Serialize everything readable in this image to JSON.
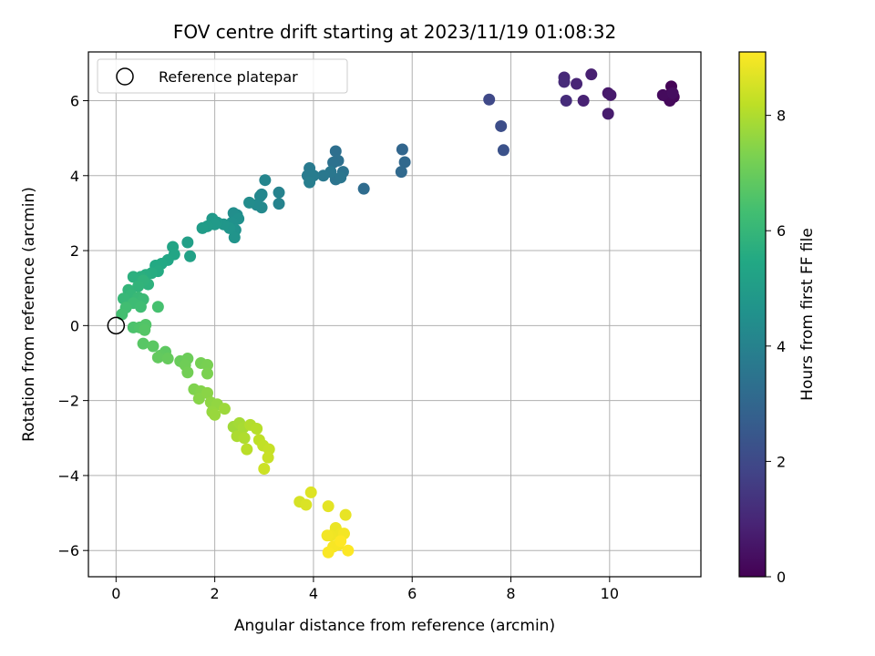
{
  "chart_data": {
    "type": "scatter",
    "title": "FOV centre drift starting at 2023/11/19 01:08:32",
    "xlabel": "Angular distance from reference (arcmin)",
    "ylabel": "Rotation from reference (arcmin)",
    "xlim": [
      -0.56,
      11.85
    ],
    "ylim": [
      -6.7,
      7.3
    ],
    "xticks": [
      0,
      2,
      4,
      6,
      8,
      10
    ],
    "yticks": [
      -6,
      -4,
      -2,
      0,
      2,
      4,
      6
    ],
    "grid": true,
    "legend": {
      "placement": "top-left",
      "entries": [
        "Reference platepar"
      ]
    },
    "reference_point": {
      "x": 0,
      "y": 0
    },
    "colorbar": {
      "label": "Hours from first FF file",
      "colormap": "viridis",
      "range": [
        0,
        9.1
      ],
      "ticks": [
        0,
        2,
        4,
        6,
        8
      ]
    },
    "points": [
      {
        "x": 11.25,
        "y": 6.38,
        "c": 0.05
      },
      {
        "x": 11.15,
        "y": 6.12,
        "c": 0.1
      },
      {
        "x": 11.3,
        "y": 6.1,
        "c": 0.15
      },
      {
        "x": 11.22,
        "y": 6.0,
        "c": 0.2
      },
      {
        "x": 11.08,
        "y": 6.15,
        "c": 0.25
      },
      {
        "x": 11.28,
        "y": 6.2,
        "c": 0.3
      },
      {
        "x": 9.97,
        "y": 6.2,
        "c": 0.6
      },
      {
        "x": 10.02,
        "y": 6.15,
        "c": 0.65
      },
      {
        "x": 9.97,
        "y": 5.65,
        "c": 0.7
      },
      {
        "x": 9.63,
        "y": 6.7,
        "c": 0.8
      },
      {
        "x": 9.47,
        "y": 6.0,
        "c": 0.85
      },
      {
        "x": 9.33,
        "y": 6.45,
        "c": 0.95
      },
      {
        "x": 9.08,
        "y": 6.62,
        "c": 1.05
      },
      {
        "x": 9.08,
        "y": 6.5,
        "c": 1.1
      },
      {
        "x": 9.12,
        "y": 6.0,
        "c": 1.15
      },
      {
        "x": 7.56,
        "y": 6.03,
        "c": 2.0
      },
      {
        "x": 7.8,
        "y": 5.32,
        "c": 2.15
      },
      {
        "x": 7.85,
        "y": 4.68,
        "c": 2.3
      },
      {
        "x": 5.8,
        "y": 4.7,
        "c": 3.0
      },
      {
        "x": 5.85,
        "y": 4.36,
        "c": 3.05
      },
      {
        "x": 5.78,
        "y": 4.1,
        "c": 3.1
      },
      {
        "x": 5.02,
        "y": 3.65,
        "c": 3.2
      },
      {
        "x": 4.45,
        "y": 4.65,
        "c": 3.3
      },
      {
        "x": 4.5,
        "y": 4.4,
        "c": 3.35
      },
      {
        "x": 4.4,
        "y": 4.35,
        "c": 3.4
      },
      {
        "x": 4.6,
        "y": 4.1,
        "c": 3.45
      },
      {
        "x": 4.45,
        "y": 3.9,
        "c": 3.5
      },
      {
        "x": 4.55,
        "y": 3.95,
        "c": 3.55
      },
      {
        "x": 4.35,
        "y": 4.1,
        "c": 3.6
      },
      {
        "x": 4.2,
        "y": 4.0,
        "c": 3.65
      },
      {
        "x": 3.92,
        "y": 4.2,
        "c": 3.7
      },
      {
        "x": 3.88,
        "y": 4.0,
        "c": 3.75
      },
      {
        "x": 4.0,
        "y": 4.0,
        "c": 3.8
      },
      {
        "x": 3.92,
        "y": 3.82,
        "c": 3.85
      },
      {
        "x": 3.3,
        "y": 3.55,
        "c": 4.0
      },
      {
        "x": 3.3,
        "y": 3.25,
        "c": 4.05
      },
      {
        "x": 3.02,
        "y": 3.88,
        "c": 4.1
      },
      {
        "x": 2.95,
        "y": 3.5,
        "c": 4.15
      },
      {
        "x": 2.92,
        "y": 3.45,
        "c": 4.2
      },
      {
        "x": 2.95,
        "y": 3.15,
        "c": 4.25
      },
      {
        "x": 2.85,
        "y": 3.22,
        "c": 4.3
      },
      {
        "x": 2.7,
        "y": 3.28,
        "c": 4.35
      },
      {
        "x": 2.45,
        "y": 2.95,
        "c": 4.4
      },
      {
        "x": 2.38,
        "y": 3.0,
        "c": 4.45
      },
      {
        "x": 2.48,
        "y": 2.85,
        "c": 4.5
      },
      {
        "x": 2.35,
        "y": 2.75,
        "c": 4.55
      },
      {
        "x": 2.42,
        "y": 2.55,
        "c": 4.6
      },
      {
        "x": 2.4,
        "y": 2.35,
        "c": 4.65
      },
      {
        "x": 2.3,
        "y": 2.6,
        "c": 4.7
      },
      {
        "x": 2.18,
        "y": 2.7,
        "c": 4.75
      },
      {
        "x": 2.05,
        "y": 2.75,
        "c": 4.8
      },
      {
        "x": 1.95,
        "y": 2.85,
        "c": 4.85
      },
      {
        "x": 2.0,
        "y": 2.7,
        "c": 4.9
      },
      {
        "x": 1.85,
        "y": 2.65,
        "c": 4.95
      },
      {
        "x": 1.75,
        "y": 2.6,
        "c": 5.0
      },
      {
        "x": 1.45,
        "y": 2.22,
        "c": 5.1
      },
      {
        "x": 1.5,
        "y": 1.85,
        "c": 5.2
      },
      {
        "x": 1.15,
        "y": 2.1,
        "c": 5.3
      },
      {
        "x": 1.18,
        "y": 1.9,
        "c": 5.35
      },
      {
        "x": 1.05,
        "y": 1.75,
        "c": 5.4
      },
      {
        "x": 0.92,
        "y": 1.65,
        "c": 5.45
      },
      {
        "x": 0.8,
        "y": 1.6,
        "c": 5.5
      },
      {
        "x": 0.85,
        "y": 1.45,
        "c": 5.55
      },
      {
        "x": 0.72,
        "y": 1.4,
        "c": 5.6
      },
      {
        "x": 0.6,
        "y": 1.35,
        "c": 5.65
      },
      {
        "x": 0.5,
        "y": 1.3,
        "c": 5.7
      },
      {
        "x": 0.35,
        "y": 1.3,
        "c": 5.75
      },
      {
        "x": 0.65,
        "y": 1.1,
        "c": 5.8
      },
      {
        "x": 0.55,
        "y": 1.2,
        "c": 5.85
      },
      {
        "x": 0.45,
        "y": 1.05,
        "c": 5.9
      },
      {
        "x": 0.25,
        "y": 0.95,
        "c": 5.95
      },
      {
        "x": 0.3,
        "y": 0.82,
        "c": 6.0
      },
      {
        "x": 0.15,
        "y": 0.72,
        "c": 6.05
      },
      {
        "x": 0.45,
        "y": 0.75,
        "c": 6.1
      },
      {
        "x": 0.55,
        "y": 0.7,
        "c": 6.15
      },
      {
        "x": 0.35,
        "y": 0.6,
        "c": 6.2
      },
      {
        "x": 0.5,
        "y": 0.5,
        "c": 6.25
      },
      {
        "x": 0.2,
        "y": 0.48,
        "c": 6.3
      },
      {
        "x": 0.12,
        "y": 0.3,
        "c": 6.35
      },
      {
        "x": 0.85,
        "y": 0.5,
        "c": 6.4
      },
      {
        "x": 0.35,
        "y": -0.05,
        "c": 6.5
      },
      {
        "x": 0.48,
        "y": -0.05,
        "c": 6.55
      },
      {
        "x": 0.6,
        "y": 0.02,
        "c": 6.6
      },
      {
        "x": 0.58,
        "y": -0.12,
        "c": 6.65
      },
      {
        "x": 0.55,
        "y": -0.48,
        "c": 6.7
      },
      {
        "x": 0.75,
        "y": -0.55,
        "c": 6.75
      },
      {
        "x": 1.0,
        "y": -0.7,
        "c": 6.8
      },
      {
        "x": 0.9,
        "y": -0.8,
        "c": 6.85
      },
      {
        "x": 0.85,
        "y": -0.85,
        "c": 6.9
      },
      {
        "x": 1.05,
        "y": -0.88,
        "c": 6.95
      },
      {
        "x": 1.3,
        "y": -0.95,
        "c": 7.0
      },
      {
        "x": 1.45,
        "y": -0.88,
        "c": 7.05
      },
      {
        "x": 1.4,
        "y": -1.05,
        "c": 7.1
      },
      {
        "x": 1.45,
        "y": -1.25,
        "c": 7.15
      },
      {
        "x": 1.72,
        "y": -1.0,
        "c": 7.2
      },
      {
        "x": 1.85,
        "y": -1.05,
        "c": 7.25
      },
      {
        "x": 1.85,
        "y": -1.28,
        "c": 7.3
      },
      {
        "x": 1.58,
        "y": -1.7,
        "c": 7.35
      },
      {
        "x": 1.72,
        "y": -1.75,
        "c": 7.4
      },
      {
        "x": 1.68,
        "y": -1.95,
        "c": 7.45
      },
      {
        "x": 1.85,
        "y": -1.8,
        "c": 7.5
      },
      {
        "x": 1.92,
        "y": -2.05,
        "c": 7.55
      },
      {
        "x": 2.05,
        "y": -2.1,
        "c": 7.6
      },
      {
        "x": 1.95,
        "y": -2.3,
        "c": 7.65
      },
      {
        "x": 2.0,
        "y": -2.38,
        "c": 7.7
      },
      {
        "x": 2.2,
        "y": -2.22,
        "c": 7.75
      },
      {
        "x": 2.38,
        "y": -2.7,
        "c": 7.8
      },
      {
        "x": 2.5,
        "y": -2.6,
        "c": 7.85
      },
      {
        "x": 2.58,
        "y": -2.72,
        "c": 7.9
      },
      {
        "x": 2.45,
        "y": -2.95,
        "c": 7.95
      },
      {
        "x": 2.6,
        "y": -3.0,
        "c": 8.0
      },
      {
        "x": 2.72,
        "y": -2.65,
        "c": 8.05
      },
      {
        "x": 2.85,
        "y": -2.75,
        "c": 8.1
      },
      {
        "x": 2.65,
        "y": -3.3,
        "c": 8.15
      },
      {
        "x": 2.9,
        "y": -3.05,
        "c": 8.2
      },
      {
        "x": 2.98,
        "y": -3.2,
        "c": 8.25
      },
      {
        "x": 3.1,
        "y": -3.3,
        "c": 8.3
      },
      {
        "x": 3.08,
        "y": -3.52,
        "c": 8.35
      },
      {
        "x": 3.0,
        "y": -3.82,
        "c": 8.4
      },
      {
        "x": 3.72,
        "y": -4.7,
        "c": 8.55
      },
      {
        "x": 3.85,
        "y": -4.78,
        "c": 8.6
      },
      {
        "x": 3.95,
        "y": -4.45,
        "c": 8.65
      },
      {
        "x": 4.3,
        "y": -4.82,
        "c": 8.75
      },
      {
        "x": 4.65,
        "y": -5.05,
        "c": 8.8
      },
      {
        "x": 4.45,
        "y": -5.4,
        "c": 8.85
      },
      {
        "x": 4.55,
        "y": -5.55,
        "c": 8.9
      },
      {
        "x": 4.35,
        "y": -5.6,
        "c": 8.92
      },
      {
        "x": 4.28,
        "y": -5.6,
        "c": 8.95
      },
      {
        "x": 4.62,
        "y": -5.55,
        "c": 8.97
      },
      {
        "x": 4.5,
        "y": -5.85,
        "c": 9.0
      },
      {
        "x": 4.4,
        "y": -5.9,
        "c": 9.02
      },
      {
        "x": 4.3,
        "y": -6.05,
        "c": 9.05
      },
      {
        "x": 4.7,
        "y": -6.0,
        "c": 9.08
      },
      {
        "x": 4.55,
        "y": -5.75,
        "c": 9.1
      }
    ]
  }
}
